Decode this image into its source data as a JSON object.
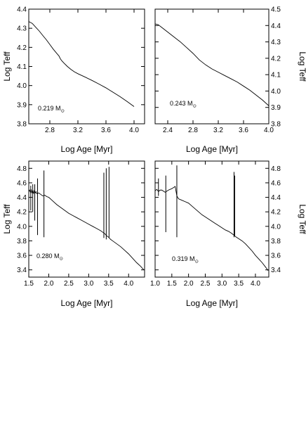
{
  "chart_data": [
    {
      "type": "line",
      "panel": "top-left",
      "mass_value": "0.219",
      "mass_unit": "M",
      "mass_unit_sub": "⊙",
      "xlabel": "Log Age [Myr]",
      "ylabel": "Log Teff",
      "ylabel_side": "left",
      "xlim": [
        2.5,
        4.15
      ],
      "ylim": [
        3.8,
        4.4
      ],
      "xticks": [
        "2.8",
        "3.2",
        "3.6",
        "4.0"
      ],
      "yticks": [
        "3.8",
        "3.9",
        "4.0",
        "4.1",
        "4.2",
        "4.3",
        "4.4"
      ],
      "series": [
        {
          "x": [
            2.5,
            2.55,
            2.6,
            2.65,
            2.7,
            2.75,
            2.8,
            2.85,
            2.9,
            2.93,
            2.95,
            2.97,
            3.0,
            3.05,
            3.1,
            3.15,
            3.2,
            3.3,
            3.4,
            3.5,
            3.6,
            3.7,
            3.8,
            3.9,
            4.0
          ],
          "y": [
            4.335,
            4.325,
            4.305,
            4.285,
            4.262,
            4.24,
            4.215,
            4.19,
            4.168,
            4.155,
            4.14,
            4.13,
            4.118,
            4.1,
            4.085,
            4.072,
            4.062,
            4.045,
            4.027,
            4.008,
            3.988,
            3.965,
            3.942,
            3.917,
            3.89
          ]
        }
      ]
    },
    {
      "type": "line",
      "panel": "top-right",
      "mass_value": "0.243",
      "mass_unit": "M",
      "mass_unit_sub": "⊙",
      "xlabel": "Log Age [Myr]",
      "ylabel": "Log Teff",
      "ylabel_side": "right",
      "xlim": [
        2.2,
        4.0
      ],
      "ylim": [
        3.8,
        4.5
      ],
      "xticks": [
        "2.4",
        "2.8",
        "3.2",
        "3.6",
        "4.0"
      ],
      "yticks": [
        "3.8",
        "3.9",
        "4.0",
        "4.1",
        "4.2",
        "4.3",
        "4.4",
        "4.5"
      ],
      "series": [
        {
          "x": [
            2.2,
            2.25,
            2.3,
            2.4,
            2.5,
            2.6,
            2.7,
            2.8,
            2.9,
            3.0,
            3.1,
            3.2,
            3.3,
            3.4,
            3.5,
            3.6,
            3.7,
            3.8,
            3.9,
            4.0
          ],
          "y": [
            4.41,
            4.405,
            4.39,
            4.36,
            4.33,
            4.3,
            4.265,
            4.23,
            4.19,
            4.16,
            4.135,
            4.115,
            4.095,
            4.075,
            4.055,
            4.03,
            4.005,
            3.975,
            3.945,
            3.91
          ]
        }
      ]
    },
    {
      "type": "line",
      "panel": "bottom-left",
      "mass_value": "0.280",
      "mass_unit": "M",
      "mass_unit_sub": "⊙",
      "xlabel": "Log Age [Myr]",
      "ylabel": "Log Teff",
      "ylabel_side": "left",
      "xlim": [
        1.5,
        4.4
      ],
      "ylim": [
        3.3,
        4.9
      ],
      "xticks": [
        "1.5",
        "2.0",
        "2.5",
        "3.0",
        "3.5",
        "4.0"
      ],
      "yticks": [
        "3.4",
        "3.6",
        "3.8",
        "4.0",
        "4.2",
        "4.4",
        "4.6",
        "4.8"
      ],
      "series": [
        {
          "x": [
            1.5,
            1.52,
            1.54,
            1.56,
            1.58,
            1.6,
            1.62,
            1.64,
            1.66,
            1.68,
            1.7,
            1.75,
            1.8,
            1.85,
            1.9,
            1.95,
            2.0,
            2.1,
            2.2,
            2.3,
            2.4,
            2.5,
            2.6,
            2.7,
            2.8,
            2.9,
            3.0,
            3.1,
            3.2,
            3.3,
            3.35,
            3.4,
            3.45,
            3.5,
            3.55,
            3.6,
            3.7,
            3.8,
            3.9,
            4.0,
            4.1,
            4.2,
            4.3,
            4.38
          ],
          "y": [
            4.48,
            4.5,
            4.47,
            4.51,
            4.46,
            4.5,
            4.45,
            4.49,
            4.46,
            4.48,
            4.45,
            4.46,
            4.44,
            4.42,
            4.43,
            4.41,
            4.4,
            4.35,
            4.3,
            4.26,
            4.22,
            4.18,
            4.15,
            4.12,
            4.09,
            4.06,
            4.03,
            4.0,
            3.97,
            3.94,
            3.92,
            3.9,
            3.87,
            3.85,
            3.82,
            3.8,
            3.76,
            3.72,
            3.67,
            3.62,
            3.56,
            3.5,
            3.45,
            3.4
          ]
        }
      ],
      "spikes": [
        {
          "x": 1.55,
          "y": [
            4.22,
            4.56
          ]
        },
        {
          "x": 1.6,
          "y": [
            4.2,
            4.58
          ]
        },
        {
          "x": 1.65,
          "y": [
            4.08,
            4.58
          ]
        },
        {
          "x": 1.72,
          "y": [
            3.88,
            4.66
          ]
        },
        {
          "x": 1.88,
          "y": [
            3.85,
            4.77
          ]
        },
        {
          "x": 3.38,
          "y": [
            3.84,
            4.74
          ]
        },
        {
          "x": 3.44,
          "y": [
            3.82,
            4.8
          ]
        },
        {
          "x": 3.51,
          "y": [
            3.84,
            4.82
          ]
        }
      ]
    },
    {
      "type": "line",
      "panel": "bottom-right",
      "mass_value": "0.319",
      "mass_unit": "M",
      "mass_unit_sub": "⊙",
      "xlabel": "Log Age [Myr]",
      "ylabel": "Log Teff",
      "ylabel_side": "right",
      "xlim": [
        1.0,
        4.4
      ],
      "ylim": [
        3.3,
        4.9
      ],
      "xticks": [
        "1.0",
        "1.5",
        "2.0",
        "2.5",
        "3.0",
        "3.5",
        "4.0"
      ],
      "yticks": [
        "3.4",
        "3.6",
        "3.8",
        "4.0",
        "4.2",
        "4.4",
        "4.6",
        "4.8"
      ],
      "series": [
        {
          "x": [
            1.0,
            1.05,
            1.1,
            1.15,
            1.2,
            1.3,
            1.4,
            1.5,
            1.6,
            1.65,
            1.7,
            1.8,
            1.9,
            2.0,
            2.1,
            2.2,
            2.3,
            2.4,
            2.5,
            2.6,
            2.7,
            2.8,
            2.9,
            3.0,
            3.1,
            3.2,
            3.3,
            3.35,
            3.4,
            3.5,
            3.6,
            3.7,
            3.8,
            3.9,
            4.0,
            4.1,
            4.2,
            4.3,
            4.38
          ],
          "y": [
            4.49,
            4.51,
            4.48,
            4.5,
            4.5,
            4.47,
            4.5,
            4.52,
            4.55,
            4.42,
            4.38,
            4.36,
            4.34,
            4.32,
            4.28,
            4.24,
            4.2,
            4.16,
            4.13,
            4.1,
            4.07,
            4.04,
            4.01,
            3.98,
            3.95,
            3.93,
            3.9,
            3.88,
            3.86,
            3.83,
            3.8,
            3.76,
            3.71,
            3.66,
            3.6,
            3.55,
            3.5,
            3.44,
            3.39
          ]
        }
      ],
      "spikes": [
        {
          "x": 1.1,
          "y": [
            4.42,
            4.66
          ]
        },
        {
          "x": 1.32,
          "y": [
            3.92,
            4.7
          ]
        },
        {
          "x": 1.65,
          "y": [
            3.85,
            4.84
          ]
        },
        {
          "x": 3.36,
          "y": [
            3.85,
            4.75
          ]
        },
        {
          "x": 3.38,
          "y": [
            3.87,
            4.7
          ]
        }
      ]
    }
  ]
}
